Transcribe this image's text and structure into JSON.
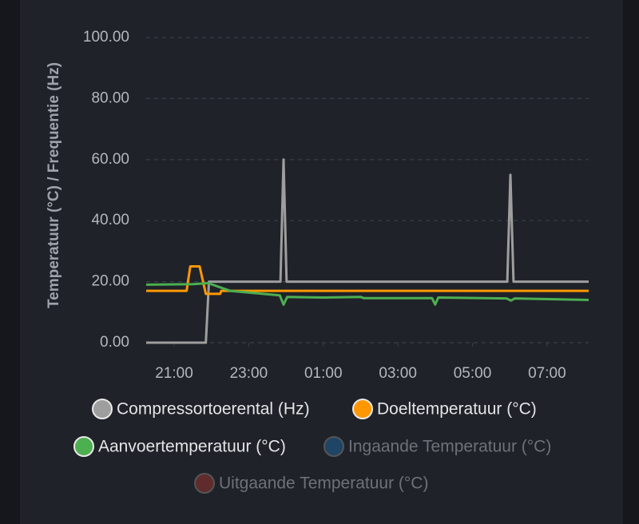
{
  "chart_data": {
    "type": "line",
    "y_label": "Temperatuur (°C) / Frequentie (Hz)",
    "ylim": [
      0,
      100
    ],
    "yticks": [
      {
        "value": 0,
        "label": "0.00"
      },
      {
        "value": 20,
        "label": "20.00"
      },
      {
        "value": 40,
        "label": "40.00"
      },
      {
        "value": 60,
        "label": "60.00"
      },
      {
        "value": 80,
        "label": "80.00"
      },
      {
        "value": 100,
        "label": "100.00"
      }
    ],
    "xlim": [
      "20:15",
      "08:07"
    ],
    "xticks": [
      "21:00",
      "23:00",
      "01:00",
      "03:00",
      "05:00",
      "07:00"
    ],
    "grid": true,
    "series": [
      {
        "name": "Compressortoerental (Hz)",
        "color": "#9e9e9e",
        "x": [
          "20:15",
          "21:51",
          "21:56",
          "23:51",
          "23:56",
          "00:01",
          "05:56",
          "06:01",
          "06:06",
          "08:07"
        ],
        "values": [
          0,
          0,
          20,
          20,
          60,
          20,
          20,
          55,
          20,
          20
        ]
      },
      {
        "name": "Doeltemperatuur (°C)",
        "color": "#ff9800",
        "x": [
          "20:15",
          "21:20",
          "21:26",
          "21:41",
          "21:51",
          "22:14",
          "22:16",
          "08:07"
        ],
        "values": [
          17,
          17,
          25,
          25,
          16,
          16,
          17,
          17
        ]
      },
      {
        "name": "Aanvoertemperatuur (°C)",
        "color": "#4caf50",
        "x": [
          "20:15",
          "21:30",
          "21:55",
          "22:30",
          "23:50",
          "23:56",
          "00:02",
          "01:00",
          "02:00",
          "02:05",
          "03:55",
          "04:00",
          "04:05",
          "05:55",
          "06:02",
          "06:08",
          "08:07"
        ],
        "values": [
          19,
          19.2,
          19.5,
          17,
          15.5,
          12.5,
          15,
          14.8,
          15,
          14.6,
          14.6,
          12.5,
          14.8,
          14.5,
          13.8,
          14.5,
          14
        ]
      },
      {
        "name": "Ingaande Temperatuur (°C)",
        "color": "#2196f3",
        "hidden": true
      },
      {
        "name": "Uitgaande Temperatuur (°C)",
        "color": "#f44336",
        "hidden": true
      }
    ]
  }
}
